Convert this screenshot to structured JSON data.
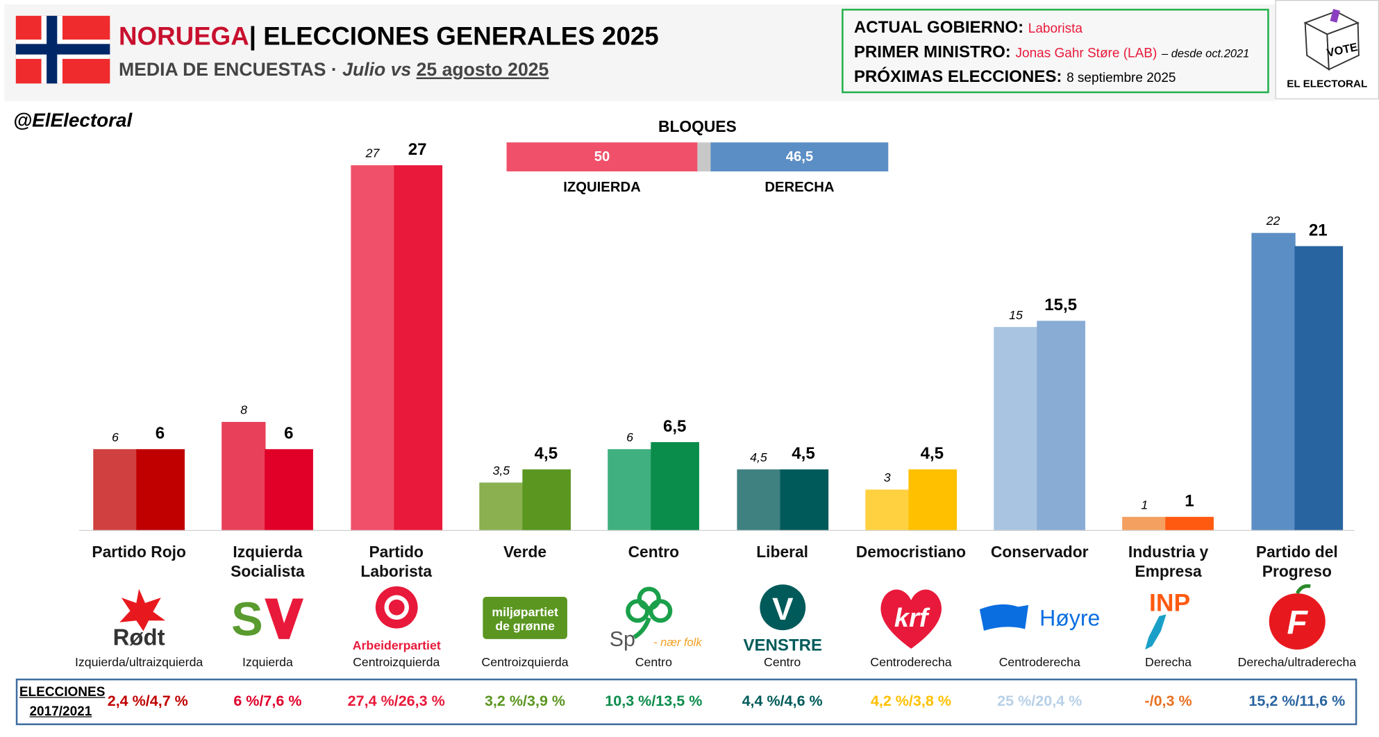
{
  "header": {
    "country": "NORUEGA",
    "title": "| ELECCIONES GENERALES 2025",
    "subtitle_main": "MEDIA DE ENCUESTAS",
    "subtitle_sep": " · ",
    "subtitle_julio": "Julio vs ",
    "subtitle_date": "25 agosto 2025"
  },
  "info": {
    "gov_label": "ACTUAL GOBIERNO:",
    "gov_value": "Laborista",
    "pm_label": "PRIMER MINISTRO:",
    "pm_value": "Jonas Gahr Støre (LAB)",
    "pm_since": "– desde oct.2021",
    "next_label": "PRÓXIMAS ELECCIONES:",
    "next_value": "8 septiembre 2025"
  },
  "logo": {
    "vote": "VOTE",
    "name": "EL ELECTORAL"
  },
  "handle": "@ElElectoral",
  "blocks": {
    "title": "BLOQUES",
    "left_label": "IZQUIERDA",
    "left_value": "50",
    "left_num": 50,
    "right_label": "DERECHA",
    "right_value": "46,5",
    "right_num": 46.5,
    "left_color": "#f0506a",
    "right_color": "#5b8ec4",
    "gap_color": "#c8c8c8"
  },
  "chart_data": {
    "type": "bar",
    "title": "NORUEGA | ELECCIONES GENERALES 2025",
    "series": [
      {
        "name": "Julio"
      },
      {
        "name": "25 agosto 2025"
      }
    ],
    "ylim": [
      0,
      27
    ],
    "parties": [
      {
        "name": "Partido Rojo",
        "old": 6,
        "new": 6,
        "old_label": "6",
        "new_label": "6",
        "ideology": "Izquierda/ultraizquierda",
        "prev": "2,4 %/4,7 %",
        "c_old": "#d04040",
        "c_new": "#c00000",
        "c_prev": "#c00000",
        "logo": "Rødt"
      },
      {
        "name": "Izquierda Socialista",
        "old": 8,
        "new": 6,
        "old_label": "8",
        "new_label": "6",
        "ideology": "Izquierda",
        "prev": "6 %/7,6 %",
        "c_old": "#e8405a",
        "c_new": "#e00028",
        "c_prev": "#e0002a",
        "logo": "SV"
      },
      {
        "name": "Partido Laborista",
        "old": 27,
        "new": 27,
        "old_label": "27",
        "new_label": "27",
        "ideology": "Centroizquierda",
        "prev": "27,4 %/26,3 %",
        "c_old": "#f0506a",
        "c_new": "#e8193a",
        "c_prev": "#e8193a",
        "logo": "Arbeiderpartiet"
      },
      {
        "name": "Verde",
        "old": 3.5,
        "new": 4.5,
        "old_label": "3,5",
        "new_label": "4,5",
        "ideology": "Centroizquierda",
        "prev": "3,2 %/3,9 %",
        "c_old": "#8ab050",
        "c_new": "#5a9620",
        "c_prev": "#5a9620",
        "logo": "miljøpartiet de grønne"
      },
      {
        "name": "Centro",
        "old": 6,
        "new": 6.5,
        "old_label": "6",
        "new_label": "6,5",
        "ideology": "Centro",
        "prev": "10,3 %/13,5 %",
        "c_old": "#40b080",
        "c_new": "#0a8c4a",
        "c_prev": "#0a8c4a",
        "logo": "Sp"
      },
      {
        "name": "Liberal",
        "old": 4.5,
        "new": 4.5,
        "old_label": "4,5",
        "new_label": "4,5",
        "ideology": "Centro",
        "prev": "4,4 %/4,6 %",
        "c_old": "#3f8080",
        "c_new": "#005a5a",
        "c_prev": "#005a5a",
        "logo": "VENSTRE"
      },
      {
        "name": "Democristiano",
        "old": 3,
        "new": 4.5,
        "old_label": "3",
        "new_label": "4,5",
        "ideology": "Centroderecha",
        "prev": "4,2 %/3,8 %",
        "c_old": "#ffd040",
        "c_new": "#ffc000",
        "c_prev": "#ffc000",
        "logo": "KrF"
      },
      {
        "name": "Conservador",
        "old": 15,
        "new": 15.5,
        "old_label": "15",
        "new_label": "15,5",
        "ideology": "Centroderecha",
        "prev": "25 %/20,4 %",
        "c_old": "#a8c4e0",
        "c_new": "#88acd4",
        "c_prev": "#b8d0e8",
        "logo": "Høyre"
      },
      {
        "name": "Industria y Empresa",
        "old": 1,
        "new": 1,
        "old_label": "1",
        "new_label": "1",
        "ideology": "Derecha",
        "prev": "-/0,3 %",
        "c_old": "#f4a060",
        "c_new": "#ff5a10",
        "c_prev": "#e87020",
        "logo": "INP"
      },
      {
        "name": "Partido del Progreso",
        "old": 22,
        "new": 21,
        "old_label": "22",
        "new_label": "21",
        "ideology": "Derecha/ultraderecha",
        "prev": "15,2 %/11,6 %",
        "c_old": "#5b8ec4",
        "c_new": "#2864a0",
        "c_prev": "#2864a0",
        "logo": "F"
      }
    ]
  },
  "bottom": {
    "label1": "ELECCIONES",
    "label2": "2017/2021"
  },
  "logos": {
    "sp_tag": "nær folk"
  }
}
